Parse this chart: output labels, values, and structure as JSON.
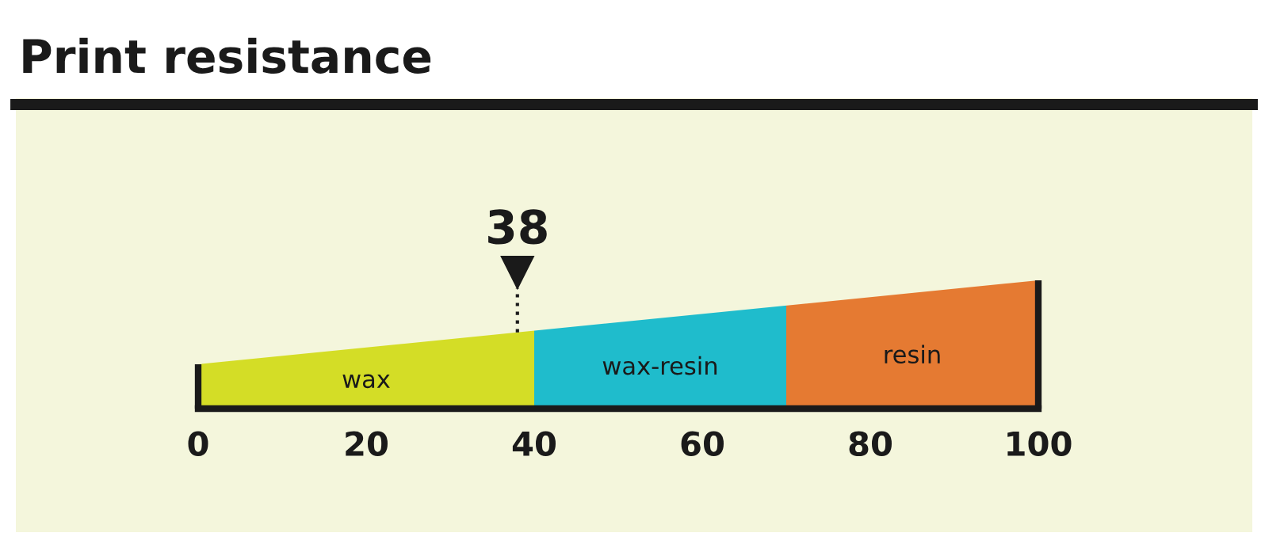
{
  "chart_data": {
    "type": "bar",
    "orientation": "horizontal",
    "stacked": true,
    "title": "Print resistance",
    "categories": [
      null
    ],
    "xlim": [
      0,
      100
    ],
    "xticks": [
      0,
      20,
      40,
      60,
      80,
      100
    ],
    "series": [
      {
        "name": "wax",
        "color": "#d4dd26",
        "values": [
          40
        ]
      },
      {
        "name": "wax-resin",
        "color": "#1fbccc",
        "values": [
          30
        ]
      },
      {
        "name": "resin",
        "color": "#e57a32",
        "values": [
          30
        ]
      }
    ],
    "ref_lines": [
      {
        "axis": "x",
        "value": 38,
        "label": "38",
        "line_style": "dotted",
        "color": "#1a1a1a"
      }
    ]
  }
}
